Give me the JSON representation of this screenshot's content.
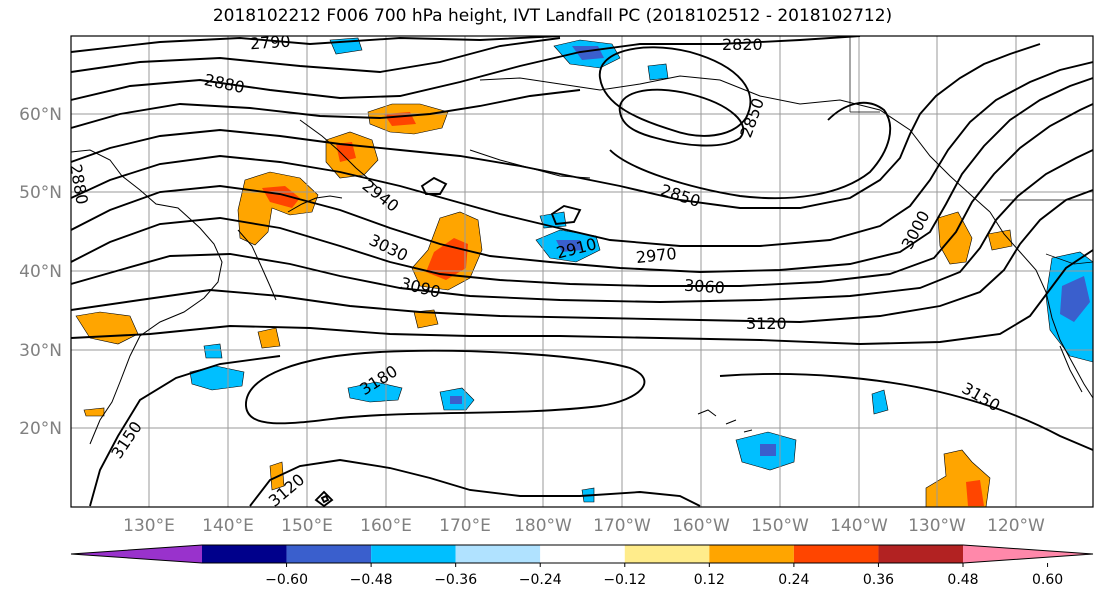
{
  "title": "2018102212 F006 700 hPa height, IVT Landfall PC (2018102512 - 2018102712)",
  "lat_labels": [
    "60°N",
    "50°N",
    "40°N",
    "30°N",
    "20°N"
  ],
  "lon_labels": [
    "130°E",
    "140°E",
    "150°E",
    "160°E",
    "170°E",
    "180°W",
    "170°W",
    "160°W",
    "150°W",
    "140°W",
    "130°W",
    "120°W"
  ],
  "contour_labels": [
    "2790",
    "2820",
    "2880",
    "2850",
    "2880",
    "2940",
    "2910",
    "2970",
    "3000",
    "3030",
    "3060",
    "3090",
    "3120",
    "3150",
    "3150",
    "3180",
    "3120",
    "2850"
  ],
  "colorbar": {
    "colors": [
      "#9932CC",
      "#00008B",
      "#3A5FCD",
      "#00BFFF",
      "#B0E2FF",
      "#FFFFFF",
      "#FFEC8B",
      "#FFA500",
      "#FF4500",
      "#B22222",
      "#FF88AA"
    ],
    "tick_labels": [
      "−0.60",
      "−0.48",
      "−0.36",
      "−0.24",
      "−0.12",
      "0.12",
      "0.24",
      "0.36",
      "0.48",
      "0.60"
    ]
  }
}
